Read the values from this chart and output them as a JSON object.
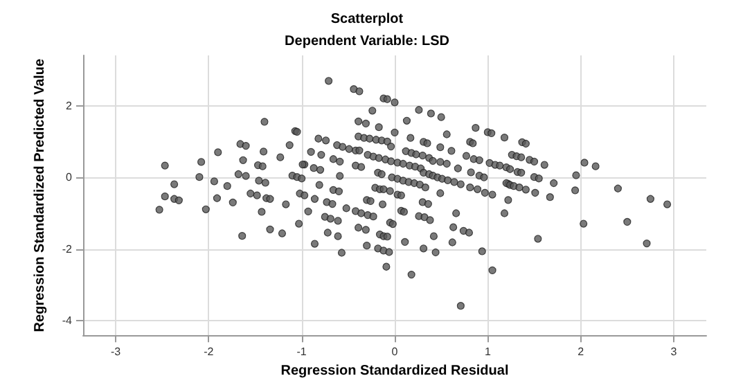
{
  "chart_data": {
    "type": "scatter",
    "title": "Scatterplot",
    "subtitle": "Dependent Variable: LSD",
    "xlabel": "Regression Standardized Residual",
    "ylabel": "Regression Standardized Predicted Value",
    "xlim": [
      -3.35,
      3.35
    ],
    "ylim": [
      -4.4,
      3.4
    ],
    "xticks": [
      -3,
      -2,
      -1,
      0,
      1,
      2,
      3
    ],
    "yticks": [
      -4,
      -2,
      0,
      2
    ],
    "grid": true,
    "marker": "circle",
    "series": [
      {
        "color": "#595959",
        "x": [
          -1.4,
          -1.07,
          -1.05,
          -1.66,
          -1.6,
          -1.13,
          -1.9,
          -1.41,
          -1.23,
          -1.63,
          -2.47,
          -2.08,
          -1.47,
          -1.42,
          -0.97,
          -2.1,
          -1.68,
          -1.6,
          -1.1,
          -1.05,
          -1.0,
          -1.94,
          -1.46,
          -1.39,
          -2.37,
          -1.8,
          -1.02,
          -0.97,
          -2.47,
          -2.37,
          -2.32,
          -1.91,
          -1.74,
          -1.55,
          -1.48,
          -1.38,
          -1.34,
          -1.17,
          -2.53,
          -2.03,
          -1.43,
          -1.03,
          -1.34,
          -1.21,
          -1.64,
          -0.71,
          -0.44,
          -0.38,
          -0.12,
          -0.08,
          0,
          -0.24,
          0.26,
          0.39,
          0.5,
          -0.39,
          -0.31,
          -0.17,
          0.13,
          0.87,
          1.0,
          1.04,
          1.18,
          0,
          0.56,
          0.17,
          -0.82,
          -0.74,
          -0.39,
          -0.33,
          -0.27,
          -0.2,
          -0.14,
          -0.08,
          -0.04,
          0.31,
          0.35,
          0.81,
          0.84,
          0.49,
          -0.62,
          -0.56,
          -0.49,
          -0.42,
          -0.38,
          -0.9,
          -0.79,
          0.61,
          0.12,
          0.18,
          0.23,
          0.3,
          0.37,
          0.41,
          0.49,
          0.56,
          -0.29,
          -0.23,
          -0.17,
          -0.1,
          -0.04,
          0.03,
          0.09,
          0.16,
          0.22,
          0.28,
          0.77,
          0.85,
          0.91,
          -0.66,
          -0.59,
          -0.99,
          -0.42,
          -0.36,
          -0.87,
          -0.8,
          0.68,
          1.02,
          1.08,
          1.13,
          1.2,
          1.24,
          0.31,
          0.37,
          0.41,
          0.46,
          0.51,
          0.57,
          0.64,
          0.71,
          -0.18,
          -0.14,
          -0.59,
          -0.03,
          0.03,
          0.09,
          0.15,
          0.21,
          0.27,
          0.33,
          0.82,
          0.91,
          0.96,
          -0.81,
          -0.66,
          -0.6,
          -0.21,
          -0.16,
          -0.12,
          -0.05,
          0.03,
          0.07,
          0.81,
          0.89,
          0.97,
          1.05,
          1.22,
          0.49,
          -0.86,
          -0.73,
          -0.67,
          -0.3,
          -0.26,
          -0.13,
          0.3,
          0.36,
          1.22,
          -0.93,
          -0.52,
          -0.42,
          -0.36,
          -0.29,
          -0.23,
          0.07,
          0.1,
          0.26,
          0.32,
          0.38,
          0.66,
          1.18,
          -0.75,
          -0.69,
          -0.61,
          -0.05,
          -0.02,
          -0.39,
          -0.31,
          0.63,
          0.74,
          0.8,
          -0.72,
          -0.61,
          -0.16,
          -0.12,
          -0.08,
          0.42,
          -0.86,
          -0.3,
          0.11,
          0.31,
          0.44,
          0.62,
          -0.18,
          -0.12,
          -0.06,
          -0.57,
          0.94,
          -0.09,
          1.05,
          0.18,
          0.71,
          1.37,
          1.41,
          1.26,
          1.31,
          1.36,
          1.45,
          1.5,
          1.61,
          2.04,
          2.16,
          1.32,
          1.36,
          1.5,
          1.55,
          1.71,
          1.95,
          1.2,
          1.24,
          1.28,
          1.34,
          1.41,
          1.51,
          1.67,
          1.94,
          2.4,
          2.75,
          2.93,
          2.03,
          2.5,
          1.54,
          2.71
        ],
        "values": [
          1.55,
          1.29,
          1.27,
          0.93,
          0.88,
          0.9,
          0.7,
          0.72,
          0.56,
          0.48,
          0.33,
          0.43,
          0.34,
          0.31,
          0.36,
          0.01,
          0.09,
          0.04,
          0.05,
          0.01,
          -0.03,
          -0.11,
          -0.09,
          -0.15,
          -0.19,
          -0.24,
          -0.45,
          -0.5,
          -0.53,
          -0.6,
          -0.64,
          -0.58,
          -0.7,
          -0.45,
          -0.5,
          -0.58,
          -0.6,
          -0.75,
          -0.9,
          -0.89,
          -0.96,
          -1.29,
          -1.45,
          -1.56,
          -1.63,
          2.69,
          2.46,
          2.4,
          2.2,
          2.18,
          2.09,
          1.86,
          1.88,
          1.78,
          1.68,
          1.56,
          1.5,
          1.4,
          1.58,
          1.38,
          1.26,
          1.23,
          1.11,
          1.25,
          1.2,
          1.1,
          1.08,
          1.03,
          1.14,
          1.1,
          1.08,
          1.05,
          1.03,
          1.0,
          0.86,
          0.99,
          0.95,
          0.99,
          0.95,
          0.84,
          0.9,
          0.85,
          0.79,
          0.75,
          0.75,
          0.71,
          0.63,
          0.74,
          0.73,
          0.68,
          0.64,
          0.61,
          0.54,
          0.46,
          0.43,
          0.38,
          0.63,
          0.58,
          0.54,
          0.5,
          0.45,
          0.41,
          0.38,
          0.33,
          0.3,
          0.25,
          0.6,
          0.51,
          0.48,
          0.51,
          0.44,
          0.36,
          0.33,
          0.29,
          0.26,
          0.21,
          0.25,
          0.4,
          0.35,
          0.33,
          0.28,
          0.23,
          0.13,
          0.09,
          0.05,
          0,
          -0.04,
          -0.08,
          -0.13,
          -0.19,
          0.13,
          0.09,
          0.04,
          0,
          -0.04,
          -0.09,
          -0.13,
          -0.16,
          -0.2,
          -0.28,
          0.14,
          0.05,
          0,
          -0.21,
          -0.35,
          -0.39,
          -0.29,
          -0.33,
          -0.33,
          -0.38,
          -0.48,
          -0.5,
          -0.28,
          -0.33,
          -0.43,
          -0.48,
          -0.18,
          -0.44,
          -0.6,
          -0.69,
          -0.74,
          -0.63,
          -0.66,
          -0.75,
          -0.69,
          -0.74,
          -0.63,
          -0.95,
          -0.86,
          -0.94,
          -1.0,
          -1.05,
          -1.09,
          -0.93,
          -0.96,
          -1.08,
          -1.11,
          -1.19,
          -1.0,
          -1.0,
          -1.1,
          -1.15,
          -1.21,
          -1.26,
          -1.3,
          -1.4,
          -1.46,
          -1.39,
          -1.49,
          -1.54,
          -1.54,
          -1.64,
          -1.59,
          -1.64,
          -1.65,
          -1.64,
          -1.85,
          -1.9,
          -1.8,
          -1.98,
          -2.09,
          -1.81,
          -1.98,
          -2.04,
          -2.08,
          -2.1,
          -2.06,
          -2.49,
          -2.59,
          -2.71,
          -3.58,
          0.98,
          0.94,
          0.63,
          0.59,
          0.56,
          0.49,
          0.44,
          0.35,
          0.41,
          0.31,
          0.15,
          0.13,
          0.01,
          -0.03,
          -0.16,
          0.06,
          -0.16,
          -0.21,
          -0.24,
          -0.28,
          -0.34,
          -0.43,
          -0.55,
          -0.36,
          -0.31,
          -0.6,
          -0.75,
          -1.29,
          -1.24,
          -1.71,
          -1.84
        ]
      }
    ]
  }
}
